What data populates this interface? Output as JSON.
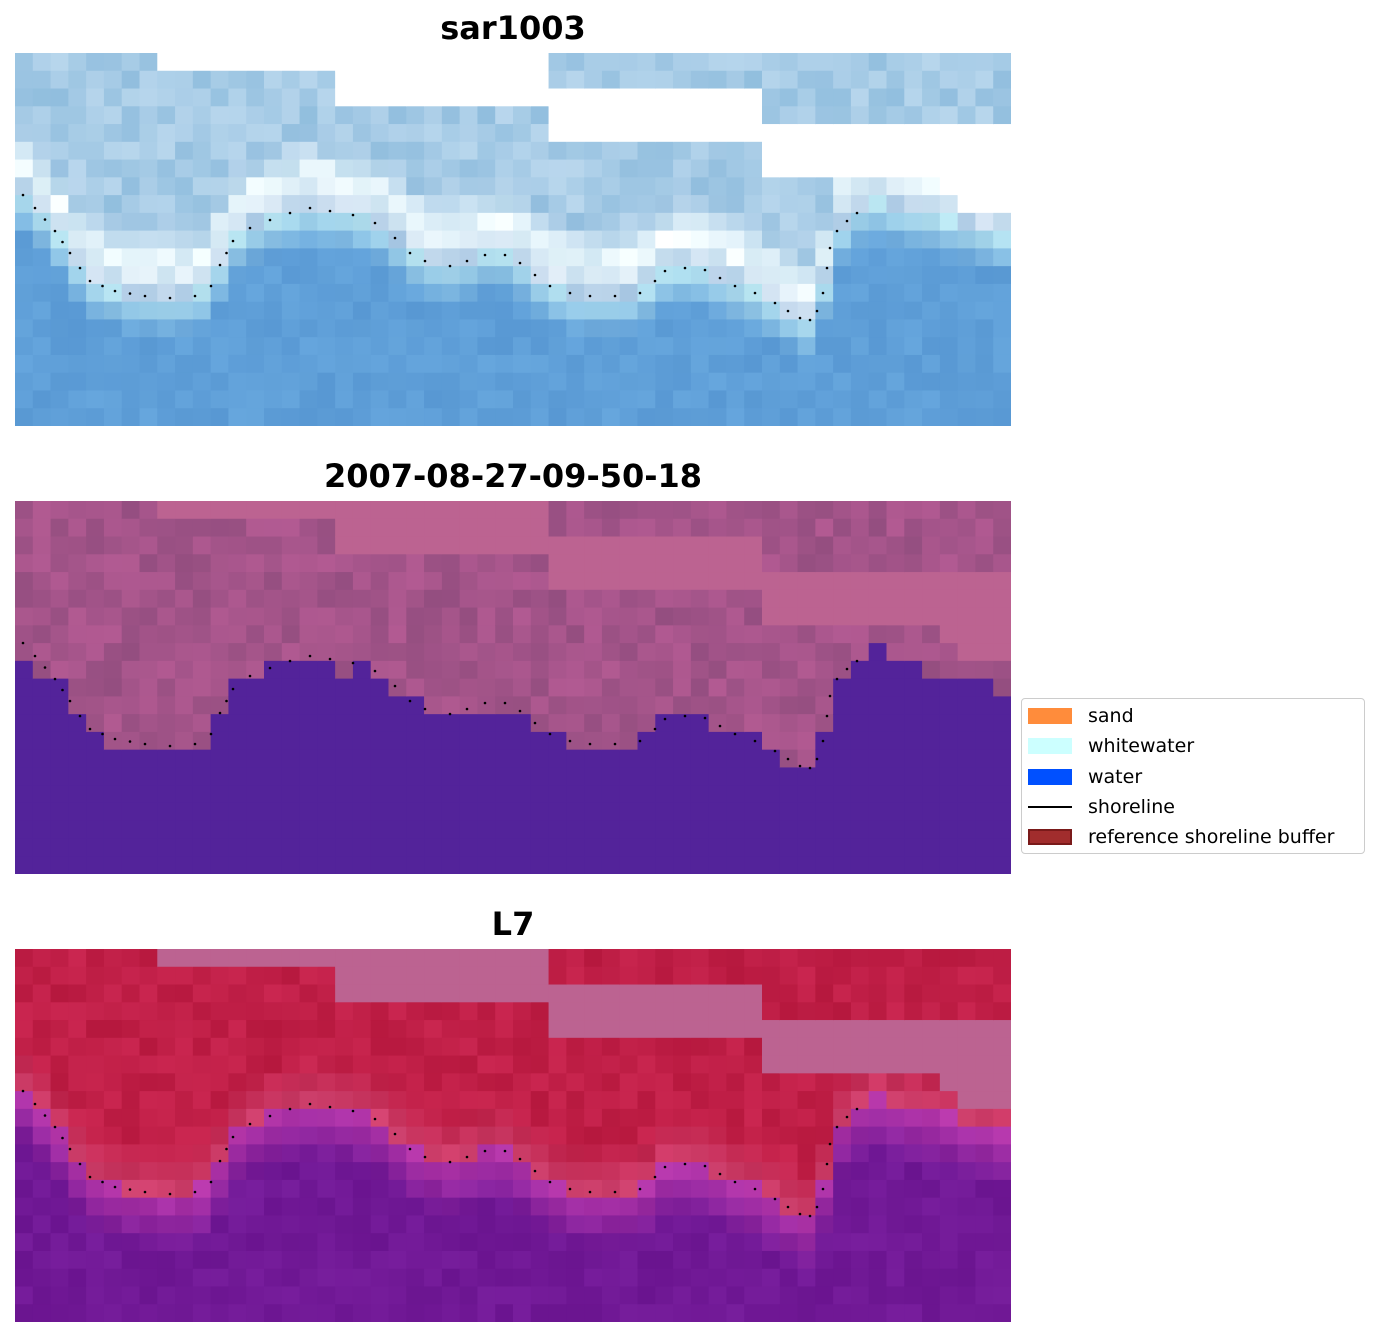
{
  "panels": [
    {
      "title": "sar1003",
      "palette": "rgb"
    },
    {
      "title": "2007-08-27-09-50-18",
      "palette": "classes"
    },
    {
      "title": "L7",
      "palette": "index"
    }
  ],
  "legend": {
    "items": [
      {
        "label": "sand",
        "type": "patch",
        "color": "#ff8c3b"
      },
      {
        "label": "whitewater",
        "type": "patch",
        "color": "#ccffff"
      },
      {
        "label": "water",
        "type": "patch",
        "color": "#0050ff"
      },
      {
        "label": "shoreline",
        "type": "line",
        "color": "#000000"
      },
      {
        "label": "reference shoreline buffer",
        "type": "patch",
        "color": "#a12d2d",
        "edge": "#7a1a1a"
      }
    ]
  },
  "colors": {
    "classes_land": "#b5608f",
    "classes_water": "#53239a",
    "nodata": "#ffffff",
    "rgb_water": "#5f9fd8",
    "rgb_foam": "#eaf4fa",
    "index_land": "#c0183e",
    "index_water": "#6a1496",
    "buffer_mask": "#bc6391"
  }
}
